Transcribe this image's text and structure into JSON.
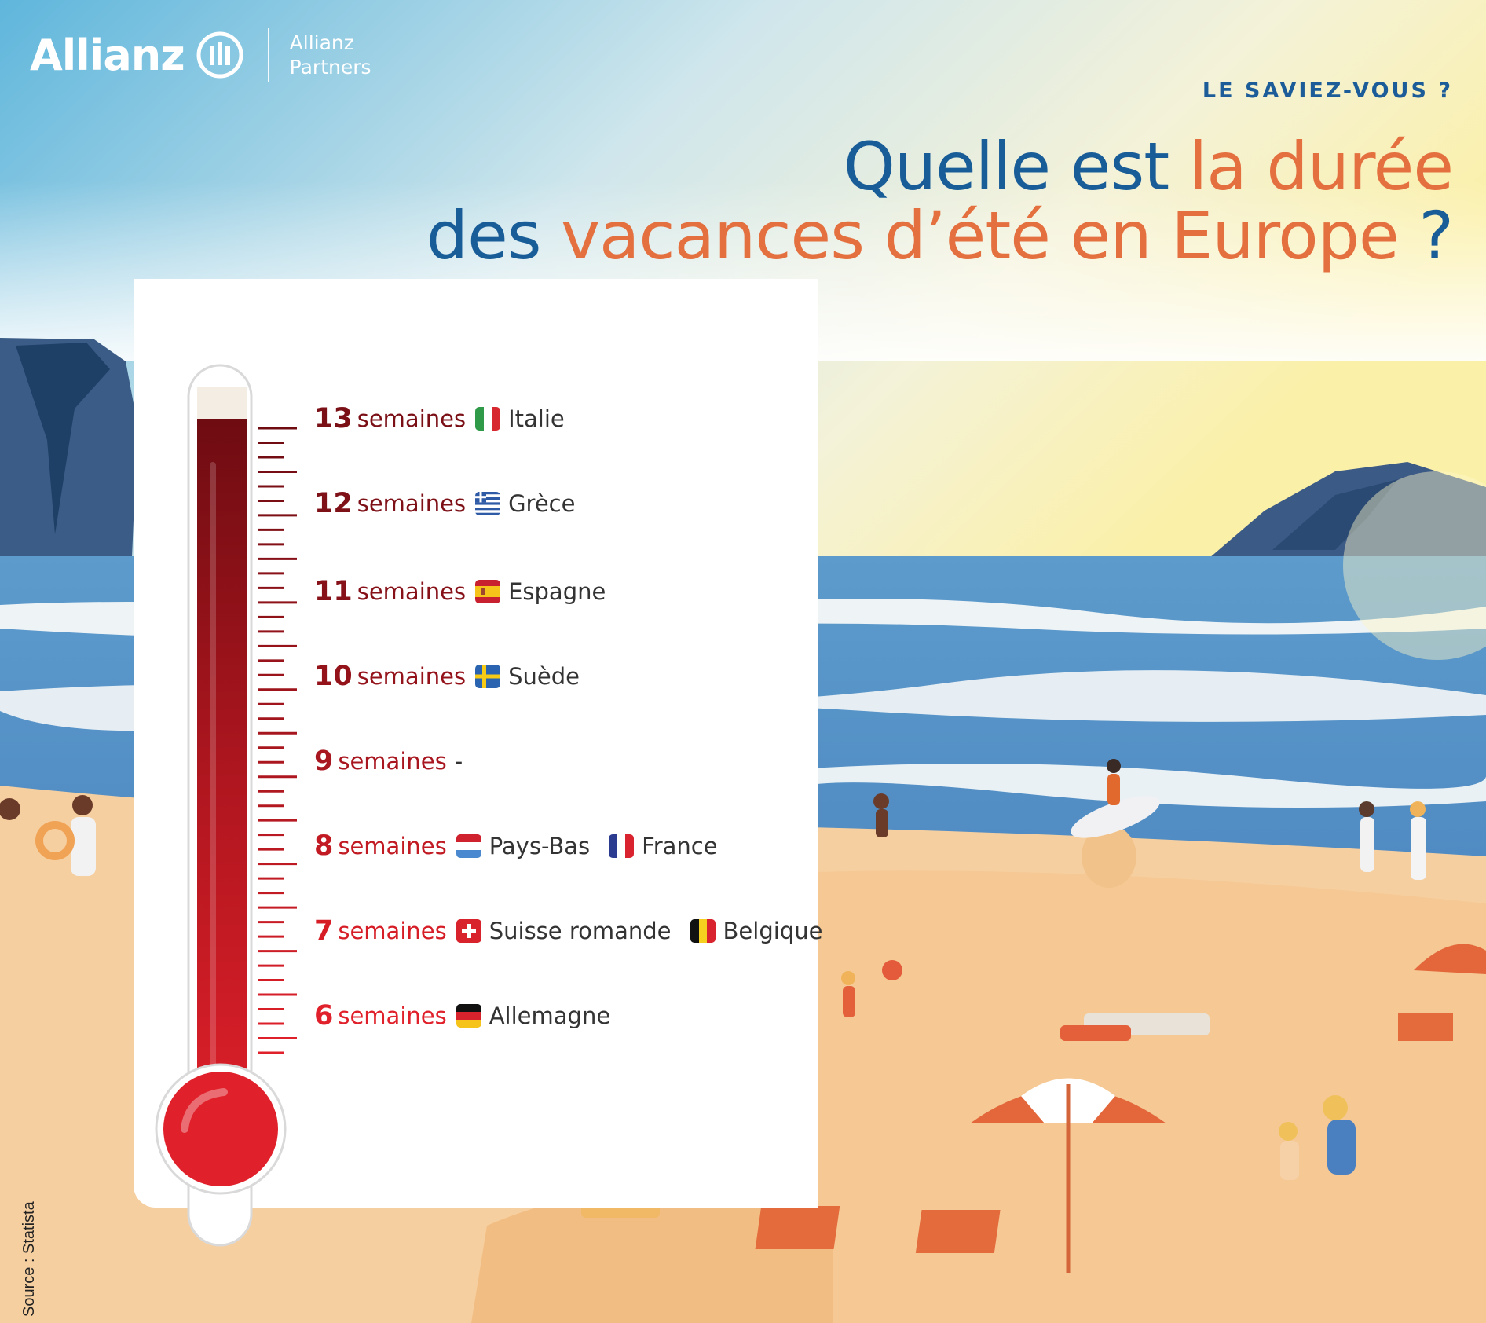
{
  "logo": {
    "brand": "Allianz",
    "partner_line1": "Allianz",
    "partner_line2": "Partners"
  },
  "kicker": "LE SAVIEZ-VOUS ?",
  "headline": {
    "line1_a": "Quelle est ",
    "line1_b": "la durée",
    "line2_a": "des ",
    "line2_b": "vacances d’été en Europe",
    "line2_c": " ?"
  },
  "rows": [
    {
      "value": "13",
      "unit": "semaines",
      "color": "#7a0f16",
      "countries": [
        {
          "name": "Italie",
          "flag": "italy-flag-icon"
        }
      ]
    },
    {
      "value": "12",
      "unit": "semaines",
      "color": "#7e1017",
      "countries": [
        {
          "name": "Grèce",
          "flag": "greece-flag-icon"
        }
      ]
    },
    {
      "value": "11",
      "unit": "semaines",
      "color": "#861118",
      "countries": [
        {
          "name": "Espagne",
          "flag": "spain-flag-icon"
        }
      ]
    },
    {
      "value": "10",
      "unit": "semaines",
      "color": "#94131b",
      "countries": [
        {
          "name": "Suède",
          "flag": "sweden-flag-icon"
        }
      ]
    },
    {
      "value": "9",
      "unit": "semaines",
      "dash": "-",
      "color": "#a8161f",
      "countries": []
    },
    {
      "value": "8",
      "unit": "semaines",
      "color": "#c11a23",
      "countries": [
        {
          "name": "Pays-Bas",
          "flag": "netherlands-flag-icon"
        },
        {
          "name": "France",
          "flag": "france-flag-icon"
        }
      ]
    },
    {
      "value": "7",
      "unit": "semaines",
      "color": "#d61d26",
      "countries": [
        {
          "name": "Suisse romande",
          "flag": "switzerland-flag-icon"
        },
        {
          "name": "Belgique",
          "flag": "belgium-flag-icon"
        }
      ]
    },
    {
      "value": "6",
      "unit": "semaines",
      "color": "#e0202a",
      "countries": [
        {
          "name": "Allemagne",
          "flag": "germany-flag-icon"
        }
      ]
    }
  ],
  "thermometer": {
    "fill_level_weeks": 13,
    "scale_max_weeks": 13
  },
  "source": "Source : Statista",
  "colors": {
    "title_blue": "#195d98",
    "title_orange": "#e4703f",
    "sea": "#5b9acb",
    "sand": "#f6cfa0"
  }
}
